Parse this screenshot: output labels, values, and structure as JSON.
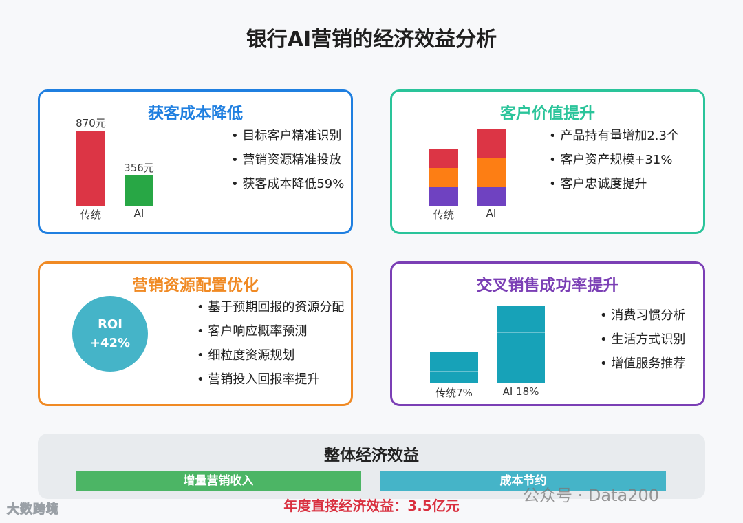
{
  "title": "银行AI营销的经济效益分析",
  "cards": {
    "acquisition": {
      "title": "获客成本降低",
      "color": "#1f7fe0",
      "bars": [
        {
          "label": "传统",
          "value": 870,
          "value_label": "870元",
          "color": "#dc3545"
        },
        {
          "label": "AI",
          "value": 356,
          "value_label": "356元",
          "color": "#28a745"
        }
      ],
      "bullets": [
        "目标客户精准识别",
        "营销资源精准投放",
        "获客成本降低59%"
      ]
    },
    "customer_value": {
      "title": "客户价值提升",
      "color": "#2ac49a",
      "bars": [
        {
          "label": "传统",
          "segments": [
            {
              "value": 1,
              "color": "#6f42c1"
            },
            {
              "value": 1,
              "color": "#fd7e14"
            },
            {
              "value": 1,
              "color": "#dc3545"
            }
          ]
        },
        {
          "label": "AI",
          "segments": [
            {
              "value": 1,
              "color": "#6f42c1"
            },
            {
              "value": 1.5,
              "color": "#fd7e14"
            },
            {
              "value": 1.5,
              "color": "#dc3545"
            }
          ]
        }
      ],
      "bullets": [
        "产品持有量增加2.3个",
        "客户资产规模+31%",
        "客户忠诚度提升"
      ]
    },
    "resource": {
      "title": "营销资源配置优化",
      "color": "#f08a24",
      "roi_line1": "ROI",
      "roi_line2": "+42%",
      "bullets": [
        "基于预期回报的资源分配",
        "客户响应概率预测",
        "细粒度资源规划",
        "营销投入回报率提升"
      ]
    },
    "cross_sell": {
      "title": "交叉销售成功率提升",
      "color": "#7b3fb5",
      "bars": [
        {
          "label": "传统7%",
          "value": 7,
          "color": "#17a2b8"
        },
        {
          "label": "AI 18%",
          "value": 18,
          "color": "#17a2b8"
        }
      ],
      "bullets": [
        "消费习惯分析",
        "生活方式识别",
        "增值服务推荐"
      ]
    }
  },
  "overall": {
    "title": "整体经济效益",
    "strip_left": "增量营销收入",
    "strip_left_color": "#4cb565",
    "strip_right": "成本节约",
    "strip_right_color": "#45b4c8",
    "annual": "年度直接经济效益：3.5亿元"
  },
  "watermarks": {
    "left": "大数跨境",
    "right": "公众号 · Data200"
  }
}
